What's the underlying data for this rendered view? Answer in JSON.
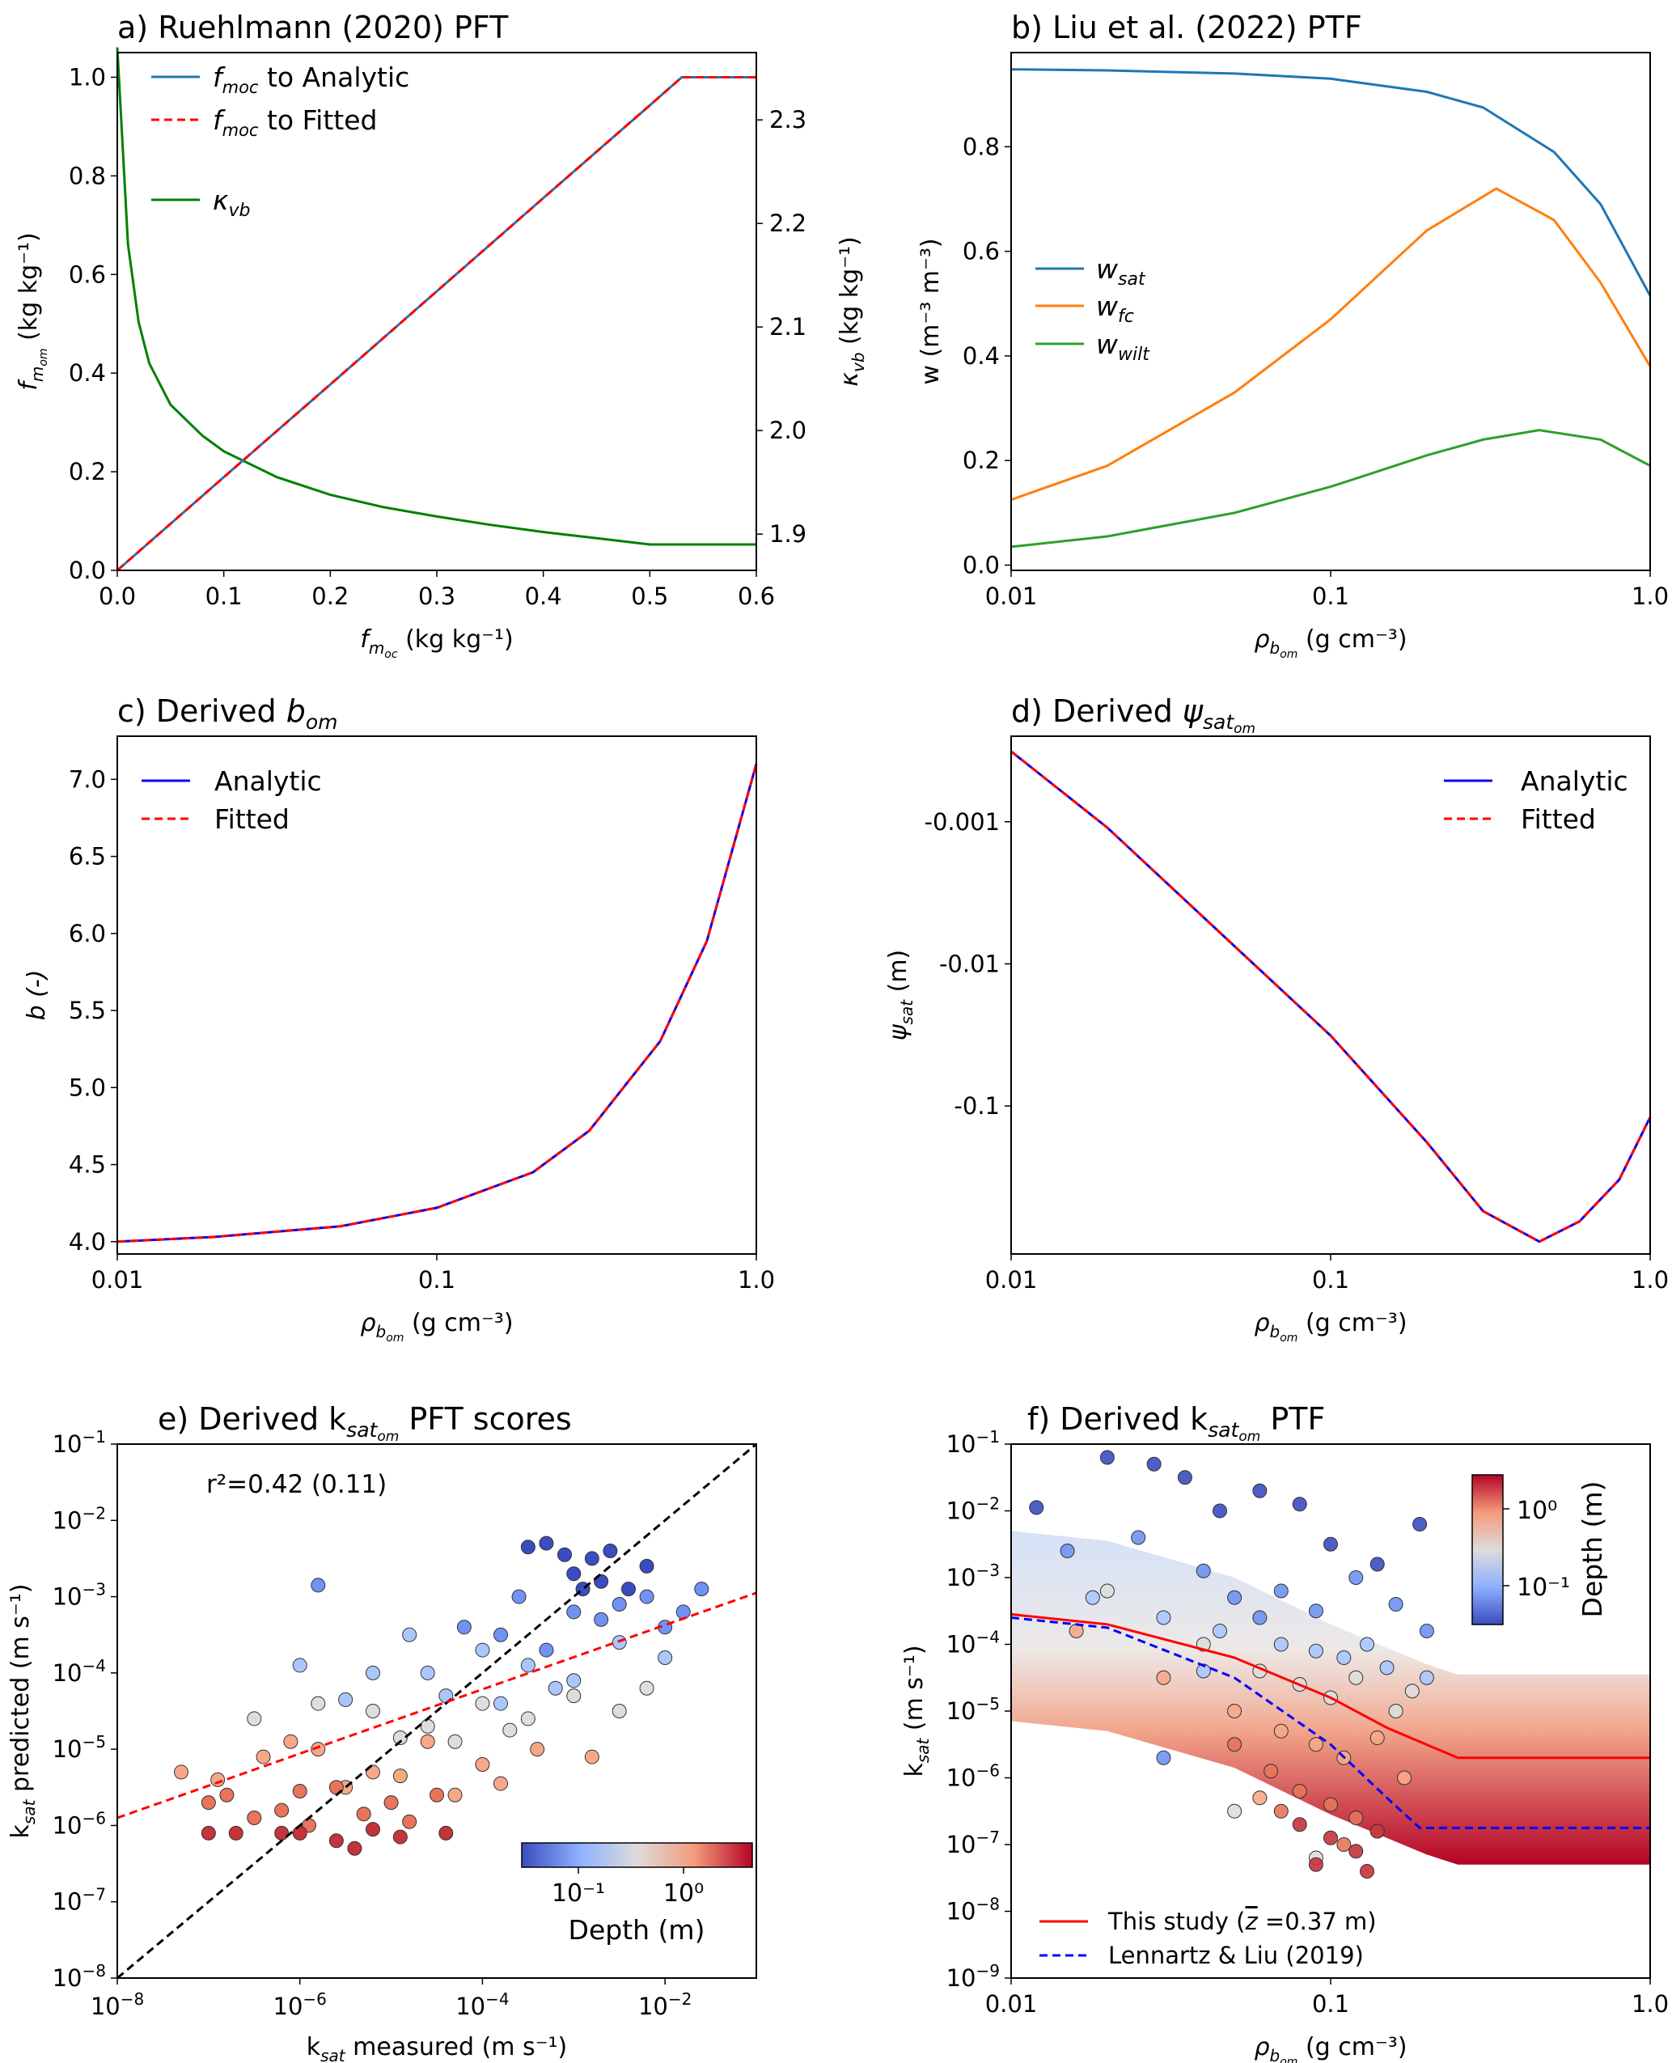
{
  "chart_data": [
    {
      "panel": "a",
      "type": "line",
      "title": "a) Ruehlmann (2020) PFT",
      "xlabel_sym": "f",
      "xlabel_sub": "m",
      "xlabel_subsub": "oc",
      "xlabel_unit": " (kg kg⁻¹)",
      "ylabel_sym": "f",
      "ylabel_sub": "m",
      "ylabel_subsub": "om",
      "ylabel_unit": " (kg kg⁻¹)",
      "y2label_sym": "κ",
      "y2label_sub": "vb",
      "y2label_unit": " (kg kg⁻¹)",
      "xlim": [
        0,
        0.6
      ],
      "ylim": [
        0,
        1.05
      ],
      "y2lim": [
        1.865,
        2.365
      ],
      "xticks": [
        "0.0",
        "0.1",
        "0.2",
        "0.3",
        "0.4",
        "0.5",
        "0.6"
      ],
      "yticks": [
        "0.0",
        "0.2",
        "0.4",
        "0.6",
        "0.8",
        "1.0"
      ],
      "y2ticks": [
        "1.9",
        "2.0",
        "2.1",
        "2.2",
        "2.3"
      ],
      "series": [
        {
          "name": "to Analytic",
          "color": "#1f77b4",
          "style": "solid",
          "x": [
            0,
            0.1,
            0.2,
            0.3,
            0.4,
            0.5,
            0.53,
            0.6
          ],
          "y": [
            0,
            0.189,
            0.377,
            0.566,
            0.755,
            0.943,
            1.0,
            1.0
          ]
        },
        {
          "name": "to Fitted",
          "color": "#ff0000",
          "style": "dashed",
          "x": [
            0,
            0.1,
            0.2,
            0.3,
            0.4,
            0.5,
            0.53,
            0.6
          ],
          "y": [
            0,
            0.189,
            0.377,
            0.566,
            0.755,
            0.943,
            1.0,
            1.0
          ]
        },
        {
          "name": "vb",
          "color": "#008000",
          "style": "solid",
          "axis": "right",
          "x": [
            0,
            0.01,
            0.02,
            0.03,
            0.05,
            0.08,
            0.1,
            0.15,
            0.2,
            0.25,
            0.3,
            0.35,
            0.4,
            0.45,
            0.5,
            0.6
          ],
          "y": [
            2.37,
            2.18,
            2.105,
            2.065,
            2.025,
            1.995,
            1.98,
            1.955,
            1.938,
            1.926,
            1.917,
            1.909,
            1.902,
            1.896,
            1.89,
            1.89
          ]
        }
      ]
    },
    {
      "panel": "b",
      "type": "line",
      "title": "b) Liu et al. (2022) PTF",
      "xscale": "log",
      "xlabel_sym": "ρ",
      "xlabel_sub": "b",
      "xlabel_subsub": "om",
      "xlabel_unit": " (g cm⁻³)",
      "ylabel": "w (m⁻³ m⁻³)",
      "xlim": [
        0.01,
        1.0
      ],
      "ylim": [
        -0.01,
        0.98
      ],
      "xticks": [
        "0.01",
        "0.1",
        "1.0"
      ],
      "yticks": [
        "0.0",
        "0.2",
        "0.4",
        "0.6",
        "0.8"
      ],
      "series": [
        {
          "name": "sat",
          "color": "#1f77b4",
          "x": [
            0.01,
            0.02,
            0.05,
            0.1,
            0.2,
            0.3,
            0.5,
            0.7,
            1.0
          ],
          "y": [
            0.948,
            0.946,
            0.94,
            0.93,
            0.905,
            0.875,
            0.79,
            0.69,
            0.515
          ]
        },
        {
          "name": "fc",
          "color": "#ff7f0e",
          "x": [
            0.01,
            0.02,
            0.05,
            0.1,
            0.2,
            0.33,
            0.5,
            0.7,
            1.0
          ],
          "y": [
            0.125,
            0.19,
            0.33,
            0.47,
            0.64,
            0.72,
            0.66,
            0.54,
            0.38
          ]
        },
        {
          "name": "wilt",
          "color": "#2ca02c",
          "x": [
            0.01,
            0.02,
            0.05,
            0.1,
            0.2,
            0.3,
            0.45,
            0.7,
            1.0
          ],
          "y": [
            0.035,
            0.055,
            0.1,
            0.15,
            0.21,
            0.24,
            0.258,
            0.24,
            0.19
          ]
        }
      ]
    },
    {
      "panel": "c",
      "type": "line",
      "title_text": "c) Derived ",
      "title_sym": "b",
      "title_sub": "om",
      "xscale": "log",
      "xlabel_sym": "ρ",
      "xlabel_sub": "b",
      "xlabel_subsub": "om",
      "xlabel_unit": " (g cm⁻³)",
      "ylabel": "b (-)",
      "xlim": [
        0.01,
        1.0
      ],
      "ylim": [
        3.92,
        7.28
      ],
      "xticks": [
        "0.01",
        "0.1",
        "1.0"
      ],
      "yticks": [
        "4.0",
        "4.5",
        "5.0",
        "5.5",
        "6.0",
        "6.5",
        "7.0"
      ],
      "series": [
        {
          "name": "Analytic",
          "color": "#0000ff",
          "style": "solid",
          "x": [
            0.01,
            0.02,
            0.05,
            0.1,
            0.2,
            0.3,
            0.5,
            0.7,
            1.0
          ],
          "y": [
            4.0,
            4.03,
            4.1,
            4.22,
            4.45,
            4.72,
            5.3,
            5.95,
            7.1
          ]
        },
        {
          "name": "Fitted",
          "color": "#ff0000",
          "style": "dashed",
          "x": [
            0.01,
            0.02,
            0.05,
            0.1,
            0.2,
            0.3,
            0.5,
            0.7,
            1.0
          ],
          "y": [
            4.0,
            4.03,
            4.1,
            4.22,
            4.45,
            4.72,
            5.3,
            5.95,
            7.1
          ]
        }
      ]
    },
    {
      "panel": "d",
      "type": "line",
      "title_text": "d) Derived ",
      "title_sym": "ψ",
      "title_sub": "sat",
      "title_subsub": "om",
      "xscale": "log",
      "xlabel_sym": "ρ",
      "xlabel_sub": "b",
      "xlabel_subsub": "om",
      "xlabel_unit": " (g cm⁻³)",
      "ylabel_sym": "ψ",
      "ylabel_sub": "sat",
      "ylabel_unit": " (m)",
      "xlim": [
        0.01,
        1.0
      ],
      "xticks": [
        "0.01",
        "0.1",
        "1.0"
      ],
      "yticks": [
        "-0.001",
        "-0.01",
        "-0.1"
      ],
      "series": [
        {
          "name": "Analytic",
          "color": "#0000ff",
          "style": "solid",
          "x": [
            0.01,
            0.02,
            0.05,
            0.1,
            0.2,
            0.3,
            0.45,
            0.6,
            0.8,
            1.0
          ],
          "y": [
            -0.00032,
            -0.0011,
            -0.0075,
            -0.032,
            -0.18,
            -0.55,
            -0.9,
            -0.65,
            -0.33,
            -0.12
          ]
        },
        {
          "name": "Fitted",
          "color": "#ff0000",
          "style": "dashed",
          "x": [
            0.01,
            0.02,
            0.05,
            0.1,
            0.2,
            0.3,
            0.45,
            0.6,
            0.8,
            1.0
          ],
          "y": [
            -0.00032,
            -0.0011,
            -0.0075,
            -0.032,
            -0.18,
            -0.55,
            -0.9,
            -0.65,
            -0.33,
            -0.12
          ]
        }
      ]
    },
    {
      "panel": "e",
      "type": "scatter",
      "title_text": "e) Derived k",
      "title_sub": "sat",
      "title_subsub": "om",
      "title_rest": " PFT scores",
      "annotation": "r²=0.42 (0.11)",
      "xscale": "log",
      "yscale": "log",
      "xlabel_sym": "k",
      "xlabel_sub": "sat",
      "xlabel_unit": " measured (m s⁻¹)",
      "ylabel_sym": "k",
      "ylabel_sub": "sat",
      "ylabel_unit": " predicted (m s⁻¹)",
      "xlim_exp": [
        -8,
        -1
      ],
      "ylim_exp": [
        -8,
        -1
      ],
      "xticks_exp": [
        -8,
        -6,
        -4,
        -2
      ],
      "yticks_exp": [
        -8,
        -7,
        -6,
        -5,
        -4,
        -3,
        -2,
        -1
      ],
      "colorbar": {
        "label": "Depth (m)",
        "ticks": [
          "10⁻¹",
          "10⁰"
        ]
      },
      "lines": [
        {
          "name": "1:1",
          "color": "#000000",
          "style": "dashed",
          "x_exp": [
            -8,
            -1
          ],
          "y_exp": [
            -8,
            -1
          ]
        },
        {
          "name": "fit",
          "color": "#ff0000",
          "style": "dashed",
          "x_exp": [
            -8,
            -1
          ],
          "y_exp": [
            -5.9,
            -2.95
          ]
        }
      ],
      "point_groups": [
        {
          "color": "#3b4cc0",
          "x_exp": [
            -3.3,
            -2.8,
            -3.0,
            -2.6,
            -2.2,
            -2.9,
            -3.5,
            -3.1,
            -2.7,
            -2.4
          ],
          "y_exp": [
            -2.3,
            -2.5,
            -2.7,
            -2.4,
            -2.6,
            -2.9,
            -2.35,
            -2.45,
            -2.8,
            -2.9
          ]
        },
        {
          "color": "#6f92f3",
          "x_exp": [
            -3.6,
            -3.0,
            -2.5,
            -2.0,
            -1.6,
            -3.8,
            -2.7,
            -2.2,
            -4.2,
            -5.8,
            -1.8,
            -3.3
          ],
          "y_exp": [
            -3.0,
            -3.2,
            -3.1,
            -3.4,
            -2.9,
            -3.5,
            -3.3,
            -3.0,
            -3.4,
            -2.85,
            -3.2,
            -3.7
          ]
        },
        {
          "color": "#aac7fd",
          "x_exp": [
            -4.6,
            -4.0,
            -3.5,
            -3.0,
            -2.5,
            -5.2,
            -4.4,
            -3.8,
            -6.0,
            -2.0,
            -4.8,
            -3.2,
            -5.5
          ],
          "y_exp": [
            -4.0,
            -3.7,
            -3.9,
            -4.1,
            -3.6,
            -4.0,
            -4.3,
            -4.4,
            -3.9,
            -3.8,
            -3.5,
            -4.2,
            -4.35
          ]
        },
        {
          "color": "#dddddd",
          "x_exp": [
            -5.2,
            -4.6,
            -4.0,
            -3.5,
            -3.0,
            -2.5,
            -5.8,
            -4.3,
            -3.7,
            -6.5,
            -2.2,
            -4.9
          ],
          "y_exp": [
            -4.5,
            -4.7,
            -4.4,
            -4.6,
            -4.3,
            -4.5,
            -4.4,
            -4.9,
            -4.75,
            -4.6,
            -4.2,
            -4.85
          ]
        },
        {
          "color": "#f7a889",
          "x_exp": [
            -6.4,
            -5.8,
            -5.2,
            -4.6,
            -4.0,
            -3.4,
            -2.8,
            -6.9,
            -5.5,
            -4.9,
            -7.3,
            -3.8,
            -6.1,
            -4.3
          ],
          "y_exp": [
            -5.1,
            -5.0,
            -5.3,
            -4.9,
            -5.2,
            -5.0,
            -5.1,
            -5.4,
            -5.5,
            -5.35,
            -5.3,
            -5.45,
            -4.9,
            -5.6
          ]
        },
        {
          "color": "#e7745b",
          "x_exp": [
            -6.8,
            -6.2,
            -5.6,
            -5.0,
            -4.5,
            -6.5,
            -5.9,
            -5.3,
            -7.0,
            -4.8,
            -6.0
          ],
          "y_exp": [
            -5.6,
            -5.8,
            -5.5,
            -5.7,
            -5.6,
            -5.9,
            -6.0,
            -5.85,
            -5.7,
            -5.95,
            -5.55
          ]
        },
        {
          "color": "#c5333b",
          "x_exp": [
            -6.7,
            -6.2,
            -5.6,
            -5.2,
            -4.9,
            -6.0,
            -5.4,
            -4.4,
            -7.0
          ],
          "y_exp": [
            -6.1,
            -6.1,
            -6.2,
            -6.05,
            -6.15,
            -6.1,
            -6.3,
            -6.1,
            -6.1
          ]
        }
      ]
    },
    {
      "panel": "f",
      "type": "scatter",
      "title_text": "f) Derived k",
      "title_sub": "sat",
      "title_subsub": "om",
      "title_rest": " PTF",
      "xscale": "log",
      "yscale": "log",
      "xlabel_sym": "ρ",
      "xlabel_sub": "b",
      "xlabel_subsub": "om",
      "xlabel_unit": " (g cm⁻³)",
      "ylabel_sym": "k",
      "ylabel_sub": "sat",
      "ylabel_unit": " (m s⁻¹)",
      "xlim": [
        0.01,
        1.0
      ],
      "ylim_exp": [
        -9,
        -1
      ],
      "xticks": [
        "0.01",
        "0.1",
        "1.0"
      ],
      "yticks_exp": [
        -9,
        -8,
        -7,
        -6,
        -5,
        -4,
        -3,
        -2,
        -1
      ],
      "colorbar": {
        "label": "Depth (m)",
        "ticks": [
          "10⁰",
          "10⁻¹"
        ]
      },
      "legend": [
        {
          "name": "This study (",
          "zbar": "z",
          "name_rest": " =0.37 m)",
          "color": "#ff0000",
          "style": "solid"
        },
        {
          "name": "Lennartz & Liu (2019)",
          "color": "#0000ff",
          "style": "dashed"
        }
      ],
      "lines": [
        {
          "name": "This study",
          "color": "#ff0000",
          "style": "solid",
          "x": [
            0.01,
            0.02,
            0.05,
            0.1,
            0.15,
            0.25,
            1.0
          ],
          "y_exp": [
            -3.55,
            -3.7,
            -4.2,
            -4.8,
            -5.25,
            -5.7,
            -5.7
          ]
        },
        {
          "name": "Lennartz & Liu (2019)",
          "color": "#0000ff",
          "style": "dashed",
          "x": [
            0.01,
            0.02,
            0.05,
            0.1,
            0.15,
            0.19,
            1.0
          ],
          "y_exp": [
            -3.6,
            -3.75,
            -4.5,
            -5.5,
            -6.3,
            -6.75,
            -6.75
          ]
        }
      ],
      "band": {
        "top_exp": [
          -2.3,
          -2.45,
          -3.0,
          -3.7,
          -4.3,
          -4.45
        ],
        "bottom_exp": [
          -5.15,
          -5.3,
          -5.85,
          -6.55,
          -7.15,
          -7.3
        ],
        "x": [
          0.01,
          0.02,
          0.05,
          0.1,
          0.2,
          0.25
        ]
      },
      "point_groups": [
        {
          "color": "#3b4cc0",
          "x": [
            0.012,
            0.02,
            0.028,
            0.035,
            0.045,
            0.06,
            0.08,
            0.1,
            0.14,
            0.19
          ],
          "y_exp": [
            -1.95,
            -1.2,
            -1.3,
            -1.5,
            -2.0,
            -1.7,
            -1.9,
            -2.5,
            -2.8,
            -2.2
          ]
        },
        {
          "color": "#6f92f3",
          "x": [
            0.015,
            0.025,
            0.04,
            0.05,
            0.07,
            0.09,
            0.12,
            0.16,
            0.2,
            0.03,
            0.06
          ],
          "y_exp": [
            -2.6,
            -2.4,
            -2.9,
            -3.3,
            -3.2,
            -3.5,
            -3.0,
            -3.4,
            -3.8,
            -5.7,
            -3.6
          ]
        },
        {
          "color": "#aac7fd",
          "x": [
            0.018,
            0.03,
            0.045,
            0.07,
            0.09,
            0.11,
            0.15,
            0.2,
            0.04,
            0.13
          ],
          "y_exp": [
            -3.3,
            -3.6,
            -3.8,
            -4.0,
            -4.1,
            -4.2,
            -4.35,
            -4.5,
            -4.4,
            -4.0
          ]
        },
        {
          "color": "#dddddd",
          "x": [
            0.02,
            0.04,
            0.06,
            0.08,
            0.1,
            0.12,
            0.16,
            0.18,
            0.05,
            0.09
          ],
          "y_exp": [
            -3.2,
            -4.0,
            -4.4,
            -4.6,
            -4.8,
            -4.5,
            -5.0,
            -4.7,
            -6.5,
            -7.2
          ]
        },
        {
          "color": "#f7a889",
          "x": [
            0.016,
            0.03,
            0.05,
            0.07,
            0.09,
            0.11,
            0.14,
            0.17,
            0.06
          ],
          "y_exp": [
            -3.8,
            -4.5,
            -5.0,
            -5.3,
            -5.5,
            -5.7,
            -5.4,
            -6.0,
            -6.3
          ]
        },
        {
          "color": "#e7745b",
          "x": [
            0.05,
            0.065,
            0.08,
            0.1,
            0.12,
            0.14,
            0.07,
            0.11
          ],
          "y_exp": [
            -5.5,
            -5.9,
            -6.2,
            -6.4,
            -6.6,
            -6.8,
            -6.5,
            -7.0
          ]
        },
        {
          "color": "#c5333b",
          "x": [
            0.08,
            0.1,
            0.12,
            0.14,
            0.09,
            0.13
          ],
          "y_exp": [
            -6.7,
            -6.9,
            -7.1,
            -6.8,
            -7.3,
            -7.4
          ]
        }
      ]
    }
  ]
}
